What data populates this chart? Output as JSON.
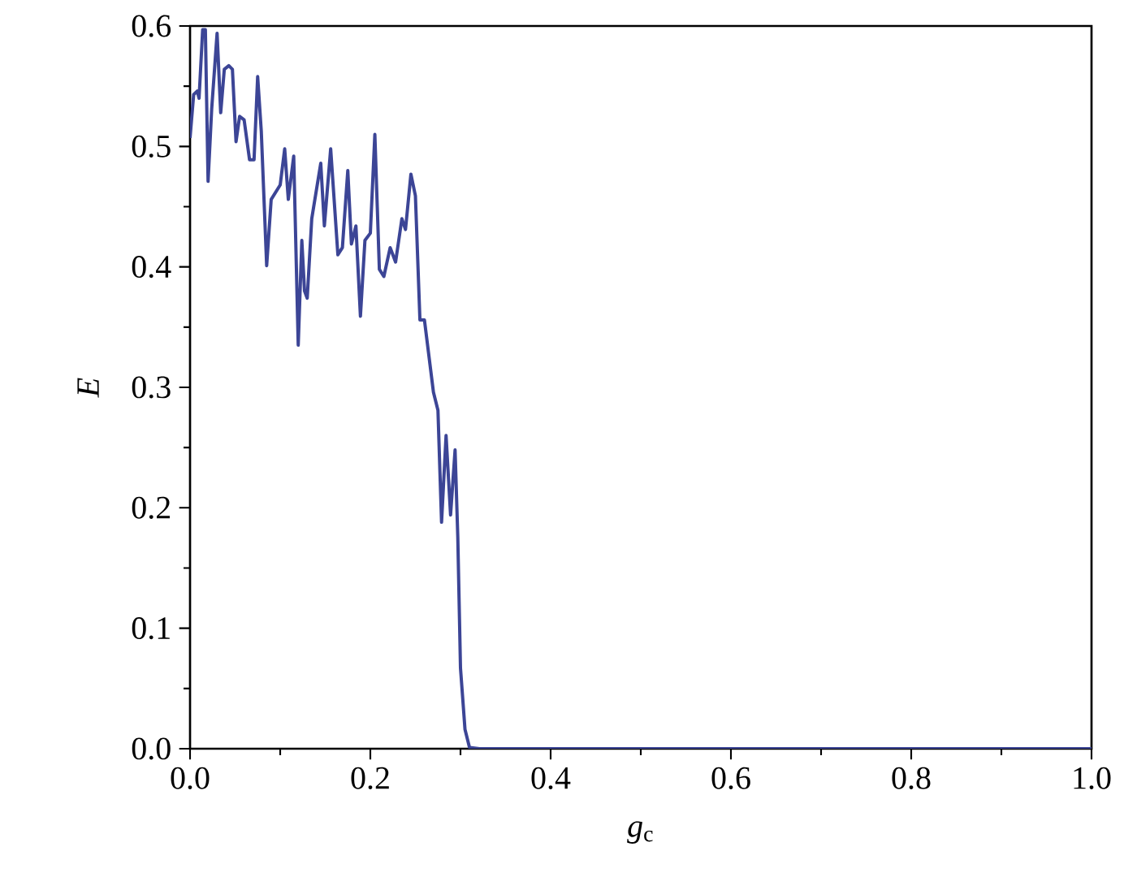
{
  "chart_data": {
    "type": "line",
    "xlabel": "*g*$_{c}$",
    "ylabel": "E",
    "xlim": [
      0,
      1
    ],
    "ylim": [
      0,
      0.6
    ],
    "xticks": [
      {
        "value": 0,
        "label": "0.0"
      },
      {
        "value": 0.2,
        "label": "0.2"
      },
      {
        "value": 0.4,
        "label": "0.4"
      },
      {
        "value": 0.6,
        "label": "0.6"
      },
      {
        "value": 0.8,
        "label": "0.8"
      },
      {
        "value": 1,
        "label": "1.0"
      }
    ],
    "yticks": [
      {
        "value": 0,
        "label": "0.0"
      },
      {
        "value": 0.1,
        "label": "0.1"
      },
      {
        "value": 0.2,
        "label": "0.2"
      },
      {
        "value": 0.3,
        "label": "0.3"
      },
      {
        "value": 0.4,
        "label": "0.4"
      },
      {
        "value": 0.5,
        "label": "0.5"
      },
      {
        "value": 0.6,
        "label": "0.6"
      }
    ],
    "grid": false,
    "marker": "none",
    "line_style": "solid",
    "series": [
      {
        "color": "#3c4596",
        "x": [
          0,
          0.004,
          0.008,
          0.01,
          0.014,
          0.017,
          0.02,
          0.024,
          0.03,
          0.034,
          0.038,
          0.043,
          0.047,
          0.051,
          0.055,
          0.06,
          0.066,
          0.071,
          0.075,
          0.079,
          0.085,
          0.09,
          0.1,
          0.105,
          0.109,
          0.115,
          0.12,
          0.124,
          0.127,
          0.13,
          0.135,
          0.145,
          0.149,
          0.156,
          0.164,
          0.169,
          0.175,
          0.179,
          0.184,
          0.189,
          0.194,
          0.2,
          0.205,
          0.21,
          0.215,
          0.222,
          0.228,
          0.235,
          0.239,
          0.245,
          0.25,
          0.255,
          0.26,
          0.27,
          0.275,
          0.279,
          0.284,
          0.289,
          0.294,
          0.297,
          0.3,
          0.305,
          0.31,
          0.321,
          0.4,
          0.6,
          0.8,
          1.0
        ],
        "values": [
          0.507,
          0.543,
          0.546,
          0.54,
          0.597,
          0.597,
          0.471,
          0.531,
          0.594,
          0.528,
          0.564,
          0.567,
          0.564,
          0.504,
          0.525,
          0.522,
          0.489,
          0.489,
          0.558,
          0.513,
          0.401,
          0.456,
          0.468,
          0.498,
          0.456,
          0.492,
          0.335,
          0.422,
          0.38,
          0.374,
          0.44,
          0.486,
          0.434,
          0.498,
          0.41,
          0.416,
          0.48,
          0.419,
          0.434,
          0.359,
          0.422,
          0.428,
          0.51,
          0.398,
          0.392,
          0.416,
          0.404,
          0.44,
          0.431,
          0.477,
          0.459,
          0.356,
          0.356,
          0.296,
          0.281,
          0.188,
          0.26,
          0.194,
          0.248,
          0.176,
          0.067,
          0.016,
          0.001,
          0,
          0,
          0,
          0,
          0
        ]
      }
    ]
  }
}
